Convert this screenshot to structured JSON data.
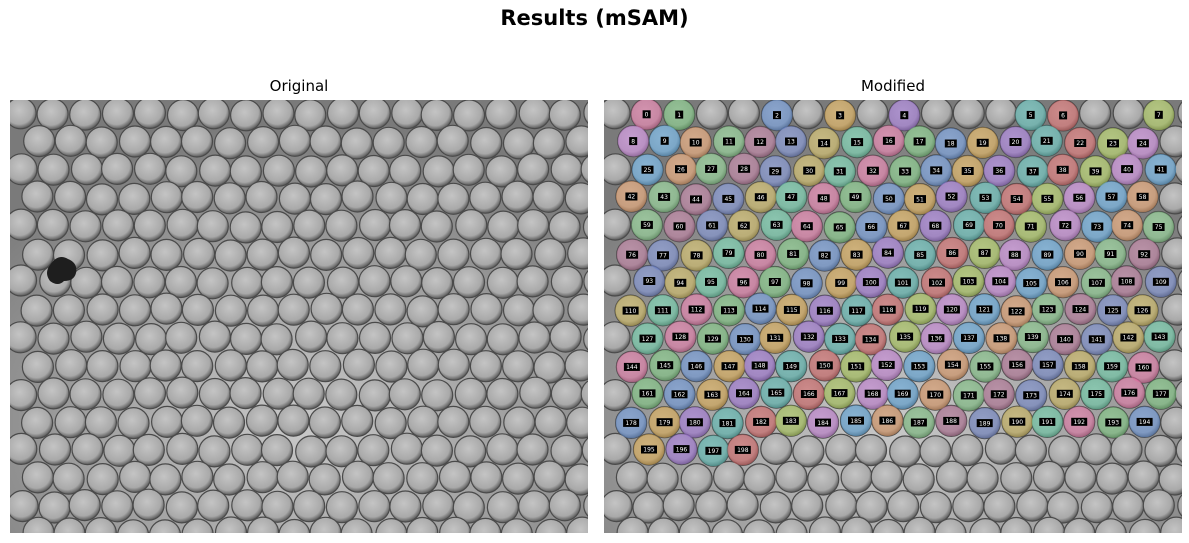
{
  "figure": {
    "title": "Results (mSAM)"
  },
  "panels": {
    "original": {
      "title": "Original"
    },
    "modified": {
      "title": "Modified"
    }
  },
  "colors": {
    "background": "#ffffff",
    "image_base": "#8a8a8a",
    "label_box": "#000000",
    "label_text": "#ffffff"
  },
  "segmentation": {
    "mask_count": 199,
    "label_first": 0,
    "label_last": 198
  }
}
